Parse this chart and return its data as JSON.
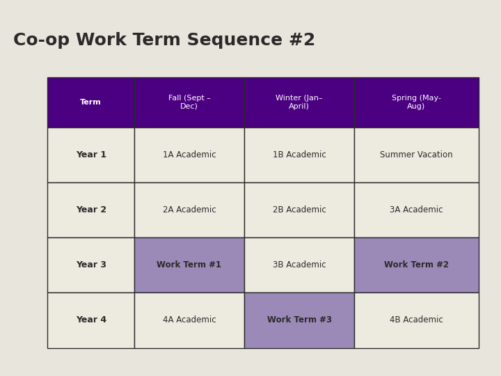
{
  "title": "Co-op Work Term Sequence #2",
  "background_color": "#e8e5dc",
  "header_bg": "#4b0082",
  "header_text_color": "#ffffff",
  "cell_bg_default": "#edeae0",
  "cell_bg_purple": "#9b89b8",
  "border_color": "#2a2a2a",
  "title_fontsize": 18,
  "headers": [
    "Term",
    "Fall (Sept –\nDec)",
    "Winter (Jan–\nApril)",
    "Spring (May-\nAug)"
  ],
  "rows": [
    {
      "label": "Year 1",
      "cells": [
        "1A Academic",
        "1B Academic",
        "Summer Vacation"
      ],
      "cell_colors": [
        "default",
        "default",
        "default"
      ]
    },
    {
      "label": "Year 2",
      "cells": [
        "2A Academic",
        "2B Academic",
        "3A Academic"
      ],
      "cell_colors": [
        "default",
        "default",
        "default"
      ]
    },
    {
      "label": "Year 3",
      "cells": [
        "Work Term #1",
        "3B Academic",
        "Work Term #2"
      ],
      "cell_colors": [
        "purple",
        "default",
        "purple"
      ]
    },
    {
      "label": "Year 4",
      "cells": [
        "4A Academic",
        "Work Term #3",
        "4B Academic"
      ],
      "cell_colors": [
        "default",
        "purple",
        "default"
      ]
    }
  ]
}
